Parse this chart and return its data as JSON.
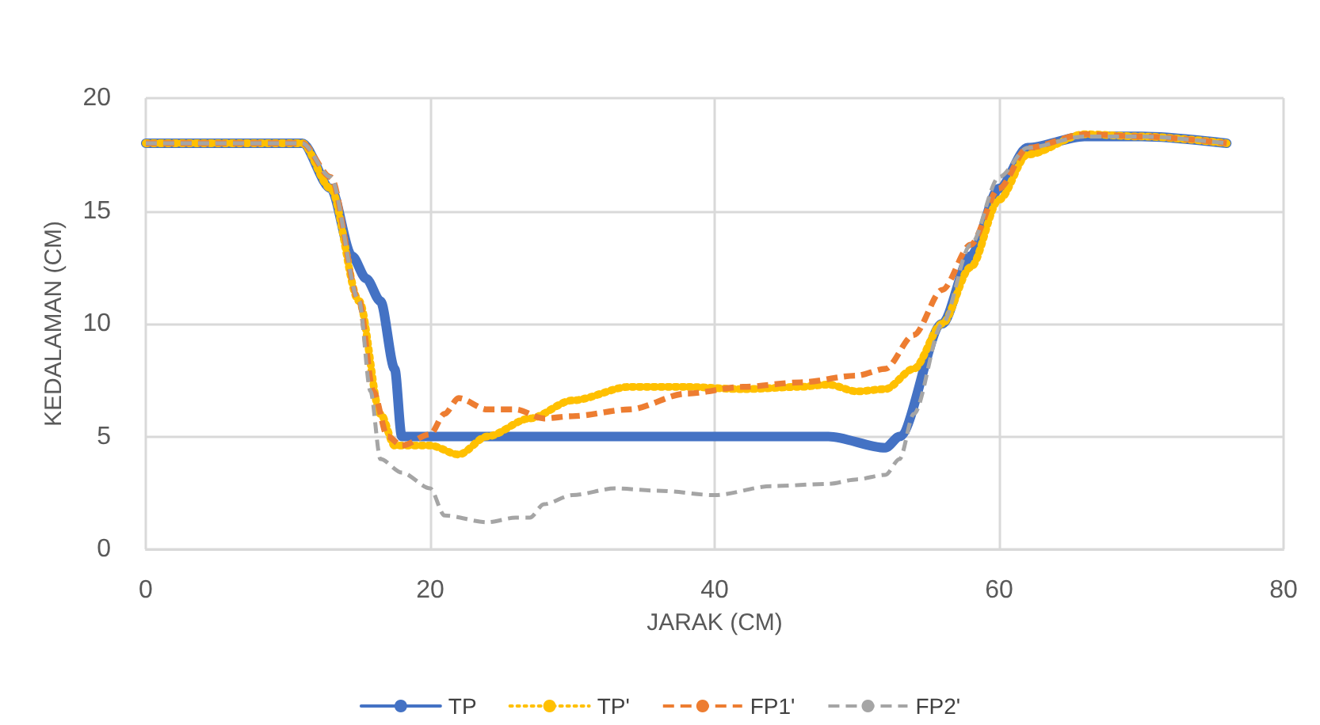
{
  "chart_data": {
    "type": "line",
    "xlabel": "JARAK (CM)",
    "ylabel": "KEDALAMAN (CM)",
    "xlim": [
      0,
      80
    ],
    "xticks": [
      0,
      20,
      40,
      60,
      80
    ],
    "ylim": [
      0,
      20
    ],
    "yticks": [
      0,
      5,
      10,
      15,
      20
    ],
    "grid": true,
    "legend": "bottom",
    "marker": "none",
    "series": [
      {
        "name": "TP",
        "color": "#4472c4",
        "line_style": "solid",
        "x": [
          0,
          11,
          13,
          14.5,
          15.5,
          16.5,
          17.5,
          18,
          19,
          48,
          52,
          53,
          56,
          58,
          60,
          62,
          66,
          70,
          76
        ],
        "values": [
          18,
          18,
          16,
          13,
          12,
          11,
          8,
          5,
          5,
          5,
          4.5,
          5,
          10,
          13,
          16,
          17.8,
          18.3,
          18.3,
          18
        ]
      },
      {
        "name": "TP'",
        "color": "#ffc000",
        "line_style": "dotted",
        "x": [
          0,
          11,
          13,
          15,
          16.5,
          17.5,
          20,
          22,
          24,
          27,
          30,
          34,
          38,
          42,
          46,
          48,
          50,
          52,
          54,
          56,
          58,
          60,
          62,
          66,
          70,
          76
        ],
        "values": [
          18,
          18,
          16,
          11,
          6,
          4.6,
          4.6,
          4.2,
          5,
          5.8,
          6.6,
          7.2,
          7.2,
          7.1,
          7.2,
          7.3,
          7,
          7.1,
          8,
          10,
          12.5,
          15.5,
          17.5,
          18.4,
          18.3,
          18
        ]
      },
      {
        "name": "FP1'",
        "color": "#ed7d31",
        "line_style": "dashed",
        "x": [
          0,
          11,
          13,
          15,
          16,
          17,
          18,
          20,
          21,
          22,
          24,
          26,
          28,
          30,
          34,
          38,
          42,
          46,
          50,
          52,
          54,
          56,
          58,
          60,
          62,
          66,
          70,
          76
        ],
        "values": [
          18,
          18,
          16.5,
          11,
          7,
          5,
          4.6,
          5.1,
          6,
          6.7,
          6.2,
          6.2,
          5.8,
          5.9,
          6.2,
          6.9,
          7.2,
          7.4,
          7.7,
          8,
          9.5,
          11.5,
          13.5,
          16,
          17.8,
          18.4,
          18.3,
          18
        ]
      },
      {
        "name": "FP2'",
        "color": "#a5a5a5",
        "line_style": "dashed",
        "x": [
          0,
          11,
          13,
          15,
          15.8,
          16.5,
          18,
          20,
          21,
          24,
          26,
          27,
          28,
          30,
          33,
          36,
          40,
          44,
          48,
          50,
          52,
          53,
          54,
          56,
          58,
          60,
          62,
          66,
          70,
          76
        ],
        "values": [
          18,
          18,
          16.5,
          11,
          7,
          4,
          3.4,
          2.7,
          1.5,
          1.2,
          1.4,
          1.4,
          2,
          2.4,
          2.7,
          2.6,
          2.4,
          2.8,
          2.9,
          3.1,
          3.3,
          4,
          6,
          10,
          13.5,
          16.5,
          17.8,
          18.3,
          18.3,
          18
        ]
      }
    ]
  }
}
